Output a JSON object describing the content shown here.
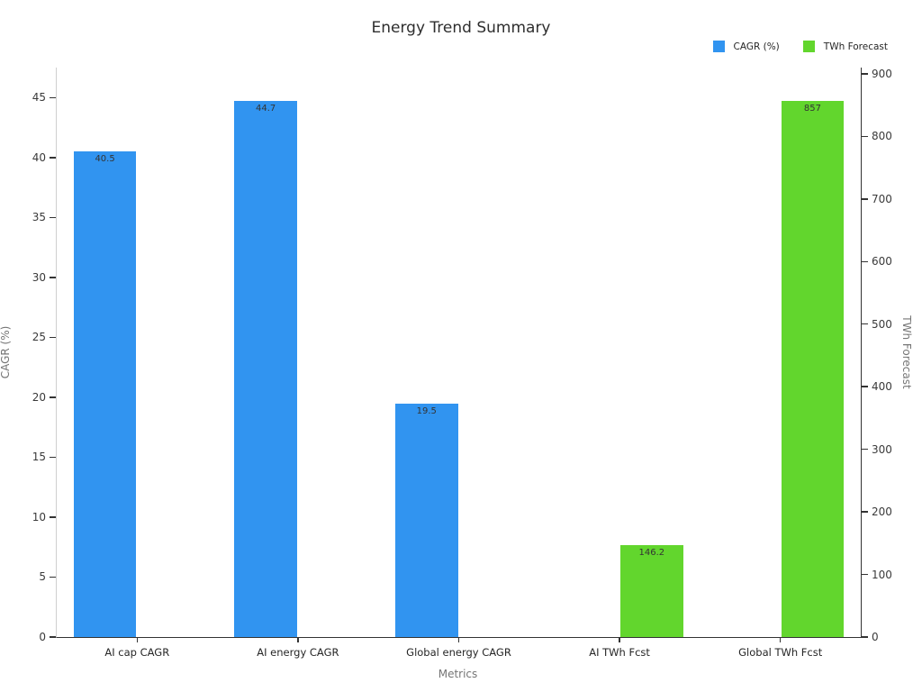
{
  "title": "Energy Trend Summary",
  "axes": {
    "xlabel": "Metrics",
    "ylabel_left": "CAGR (%)",
    "ylabel_right": "TWh Forecast"
  },
  "legend": {
    "items": [
      {
        "label": "CAGR (%)",
        "color": "#3194f0",
        "icon": "legend-swatch-blue"
      },
      {
        "label": "TWh Forecast",
        "color": "#62d62d",
        "icon": "legend-swatch-green"
      }
    ]
  },
  "chart_data": {
    "type": "bar",
    "title": "Energy Trend Summary",
    "xlabel": "Metrics",
    "ylabel": "CAGR (%)",
    "ylabel_right": "TWh Forecast",
    "categories": [
      "AI cap CAGR",
      "AI energy CAGR",
      "Global energy CAGR",
      "AI TWh Fcst",
      "Global TWh Fcst"
    ],
    "series": [
      {
        "name": "CAGR (%)",
        "axis": "left",
        "color": "#3194f0",
        "values": [
          40.5,
          44.7,
          19.5,
          null,
          null
        ],
        "labels": [
          "40.5",
          "44.7",
          "19.5",
          null,
          null
        ]
      },
      {
        "name": "TWh Forecast",
        "axis": "right",
        "color": "#62d62d",
        "values": [
          null,
          null,
          null,
          146.2,
          857
        ],
        "labels": [
          null,
          null,
          null,
          "146.2",
          "857"
        ]
      }
    ],
    "left_axis": {
      "ticks": [
        0,
        5,
        10,
        15,
        20,
        25,
        30,
        35,
        40,
        45
      ],
      "range": [
        0,
        47.5
      ]
    },
    "right_axis": {
      "ticks": [
        0,
        100,
        200,
        300,
        400,
        500,
        600,
        700,
        800,
        900
      ],
      "range": [
        0,
        910
      ]
    },
    "grid": false,
    "legend_position": "top-right",
    "bar_width_fraction": 0.39,
    "group_offset_fraction": 0.2
  }
}
